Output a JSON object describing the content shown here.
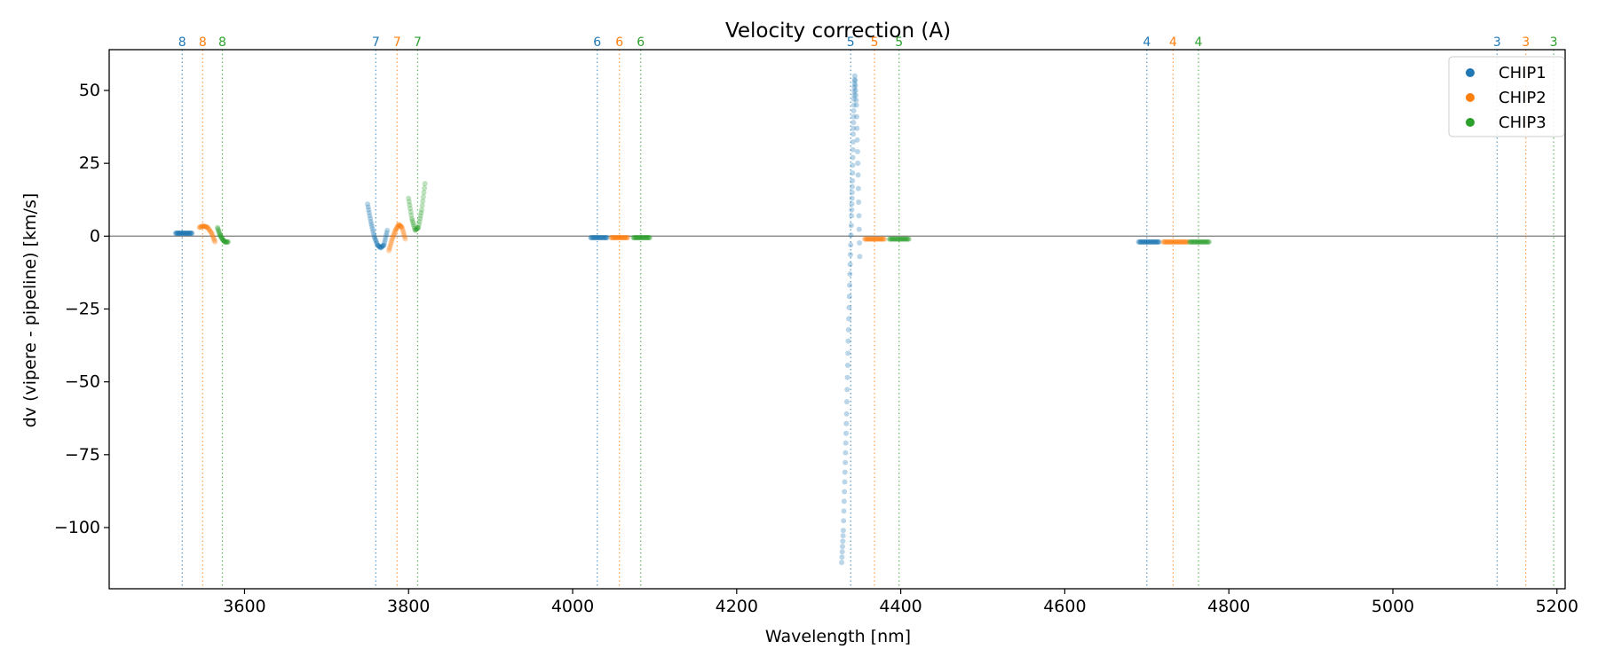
{
  "chart_data": {
    "type": "scatter",
    "title": "Velocity correction (A)",
    "xlabel": "Wavelength [nm]",
    "ylabel": "dv (vipere - pipeline) [km/s]",
    "xlim": [
      3435,
      5210
    ],
    "ylim": [
      -121,
      64
    ],
    "xticks": [
      3600,
      3800,
      4000,
      4200,
      4400,
      4600,
      4800,
      5000,
      5200
    ],
    "yticks": [
      50,
      25,
      0,
      -25,
      -50,
      -75,
      -100
    ],
    "legend_position": "top-right",
    "series_colors": {
      "CHIP1": "#1f77b4",
      "CHIP2": "#ff7f0e",
      "CHIP3": "#2ca02c"
    },
    "series": [
      {
        "name": "CHIP1",
        "segments": [
          {
            "x": [
              3516,
              3520,
              3524,
              3528,
              3532,
              3536
            ],
            "y": [
              1,
              1,
              1,
              1,
              1,
              1
            ]
          },
          {
            "x": [
              3750,
              3754,
              3758,
              3762,
              3766,
              3770,
              3774
            ],
            "y": [
              11,
              5,
              0,
              -3,
              -4,
              -3,
              2
            ]
          },
          {
            "x": [
              4022,
              4027,
              4032,
              4037,
              4042
            ],
            "y": [
              -0.5,
              -0.5,
              -0.5,
              -0.5,
              -0.5
            ]
          },
          {
            "x": [
              4328,
              4330,
              4332,
              4334,
              4336,
              4338,
              4340,
              4341,
              4342,
              4343,
              4344,
              4346,
              4348,
              4350
            ],
            "y": [
              -112,
              -101,
              -81,
              -61,
              -36,
              -13,
              7,
              19,
              35,
              47,
              55,
              45,
              21,
              -7
            ]
          },
          {
            "x": [
              4690,
              4695,
              4700,
              4705,
              4710,
              4715
            ],
            "y": [
              -2,
              -2,
              -2,
              -2,
              -2,
              -2
            ]
          }
        ]
      },
      {
        "name": "CHIP2",
        "segments": [
          {
            "x": [
              3545,
              3550,
              3555,
              3560,
              3564
            ],
            "y": [
              3,
              3.5,
              3,
              1,
              -2
            ]
          },
          {
            "x": [
              3776,
              3780,
              3784,
              3788,
              3792,
              3796
            ],
            "y": [
              -5,
              -1,
              2,
              4,
              3,
              -1
            ]
          },
          {
            "x": [
              4047,
              4052,
              4057,
              4062,
              4067
            ],
            "y": [
              -0.5,
              -0.5,
              -0.5,
              -0.5,
              -0.5
            ]
          },
          {
            "x": [
              4356,
              4362,
              4368,
              4374,
              4380
            ],
            "y": [
              -1,
              -1,
              -1,
              -1,
              -1
            ]
          },
          {
            "x": [
              4720,
              4726,
              4732,
              4738,
              4744,
              4750
            ],
            "y": [
              -2,
              -2,
              -2,
              -2,
              -2,
              -2
            ]
          }
        ]
      },
      {
        "name": "CHIP3",
        "segments": [
          {
            "x": [
              3567,
              3570,
              3573,
              3576,
              3580
            ],
            "y": [
              3,
              0.5,
              -1,
              -2,
              -2
            ]
          },
          {
            "x": [
              3800,
              3804,
              3808,
              3812,
              3816,
              3820
            ],
            "y": [
              13,
              6,
              2,
              3,
              9,
              18
            ]
          },
          {
            "x": [
              4074,
              4079,
              4084,
              4089,
              4094
            ],
            "y": [
              -0.5,
              -0.5,
              -0.5,
              -0.5,
              -0.5
            ]
          },
          {
            "x": [
              4386,
              4392,
              4398,
              4404,
              4410
            ],
            "y": [
              -1,
              -1,
              -1,
              -1,
              -1
            ]
          },
          {
            "x": [
              4752,
              4758,
              4764,
              4770,
              4776
            ],
            "y": [
              -2,
              -2,
              -2,
              -2,
              -2
            ]
          }
        ]
      }
    ],
    "order_markers": [
      {
        "order": "8",
        "chip": "CHIP1",
        "x": 3524
      },
      {
        "order": "8",
        "chip": "CHIP2",
        "x": 3549
      },
      {
        "order": "8",
        "chip": "CHIP3",
        "x": 3573
      },
      {
        "order": "7",
        "chip": "CHIP1",
        "x": 3760
      },
      {
        "order": "7",
        "chip": "CHIP2",
        "x": 3786
      },
      {
        "order": "7",
        "chip": "CHIP3",
        "x": 3811
      },
      {
        "order": "6",
        "chip": "CHIP1",
        "x": 4030
      },
      {
        "order": "6",
        "chip": "CHIP2",
        "x": 4057
      },
      {
        "order": "6",
        "chip": "CHIP3",
        "x": 4083
      },
      {
        "order": "5",
        "chip": "CHIP1",
        "x": 4339
      },
      {
        "order": "5",
        "chip": "CHIP2",
        "x": 4368
      },
      {
        "order": "5",
        "chip": "CHIP3",
        "x": 4398
      },
      {
        "order": "4",
        "chip": "CHIP1",
        "x": 4700
      },
      {
        "order": "4",
        "chip": "CHIP2",
        "x": 4732
      },
      {
        "order": "4",
        "chip": "CHIP3",
        "x": 4763
      },
      {
        "order": "3",
        "chip": "CHIP1",
        "x": 5127
      },
      {
        "order": "3",
        "chip": "CHIP2",
        "x": 5162
      },
      {
        "order": "3",
        "chip": "CHIP3",
        "x": 5196
      }
    ],
    "zero_line": 0
  }
}
